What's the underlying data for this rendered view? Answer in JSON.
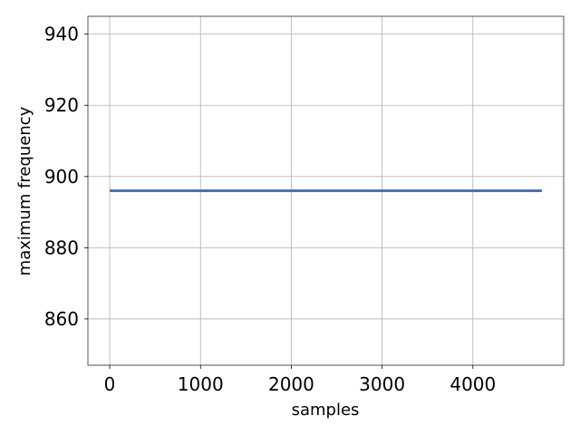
{
  "chart_data": {
    "type": "line",
    "title": "",
    "xlabel": "samples",
    "ylabel": "maximum frequency",
    "xlim": [
      -240,
      5000
    ],
    "ylim": [
      847,
      945
    ],
    "x_ticks": [
      0,
      1000,
      2000,
      3000,
      4000
    ],
    "y_ticks": [
      860,
      880,
      900,
      920,
      940
    ],
    "grid": true,
    "series": [
      {
        "color": "#4c72b0",
        "x": [
          0,
          4760
        ],
        "y": [
          896,
          896
        ]
      }
    ]
  }
}
